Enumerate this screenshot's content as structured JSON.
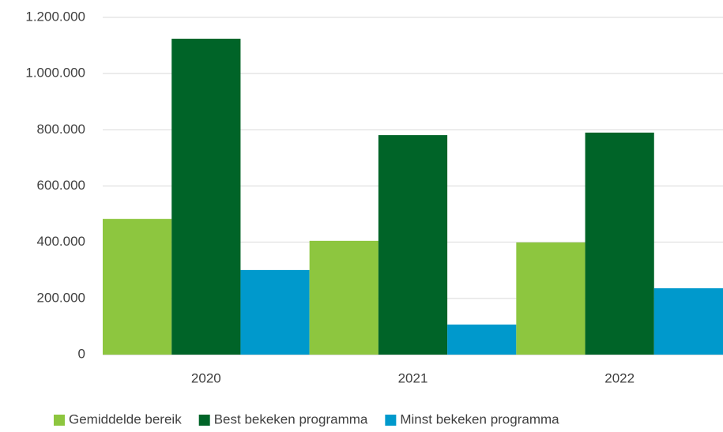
{
  "chart_data": {
    "type": "bar",
    "categories": [
      "2020",
      "2021",
      "2022"
    ],
    "series": [
      {
        "name": "Gemiddelde bereik",
        "color": "#8dc63f",
        "values": [
          483000,
          405000,
          399000
        ]
      },
      {
        "name": "Best bekeken programma",
        "color": "#006428",
        "values": [
          1124000,
          781000,
          790000
        ]
      },
      {
        "name": "Minst bekeken programma",
        "color": "#0099cc",
        "values": [
          301000,
          107000,
          236000
        ]
      }
    ],
    "ylim": [
      0,
      1200000
    ],
    "yticks": [
      0,
      {
        "value": 200000,
        "label": "200.000"
      },
      {
        "value": 400000,
        "label": "400.000"
      },
      {
        "value": 600000,
        "label": "600.000"
      },
      {
        "value": 800000,
        "label": "800.000"
      },
      {
        "value": 1000000,
        "label": "1.000.000"
      },
      {
        "value": 1200000,
        "label": "1.200.000"
      }
    ],
    "grid": true,
    "legend": "bottom"
  }
}
